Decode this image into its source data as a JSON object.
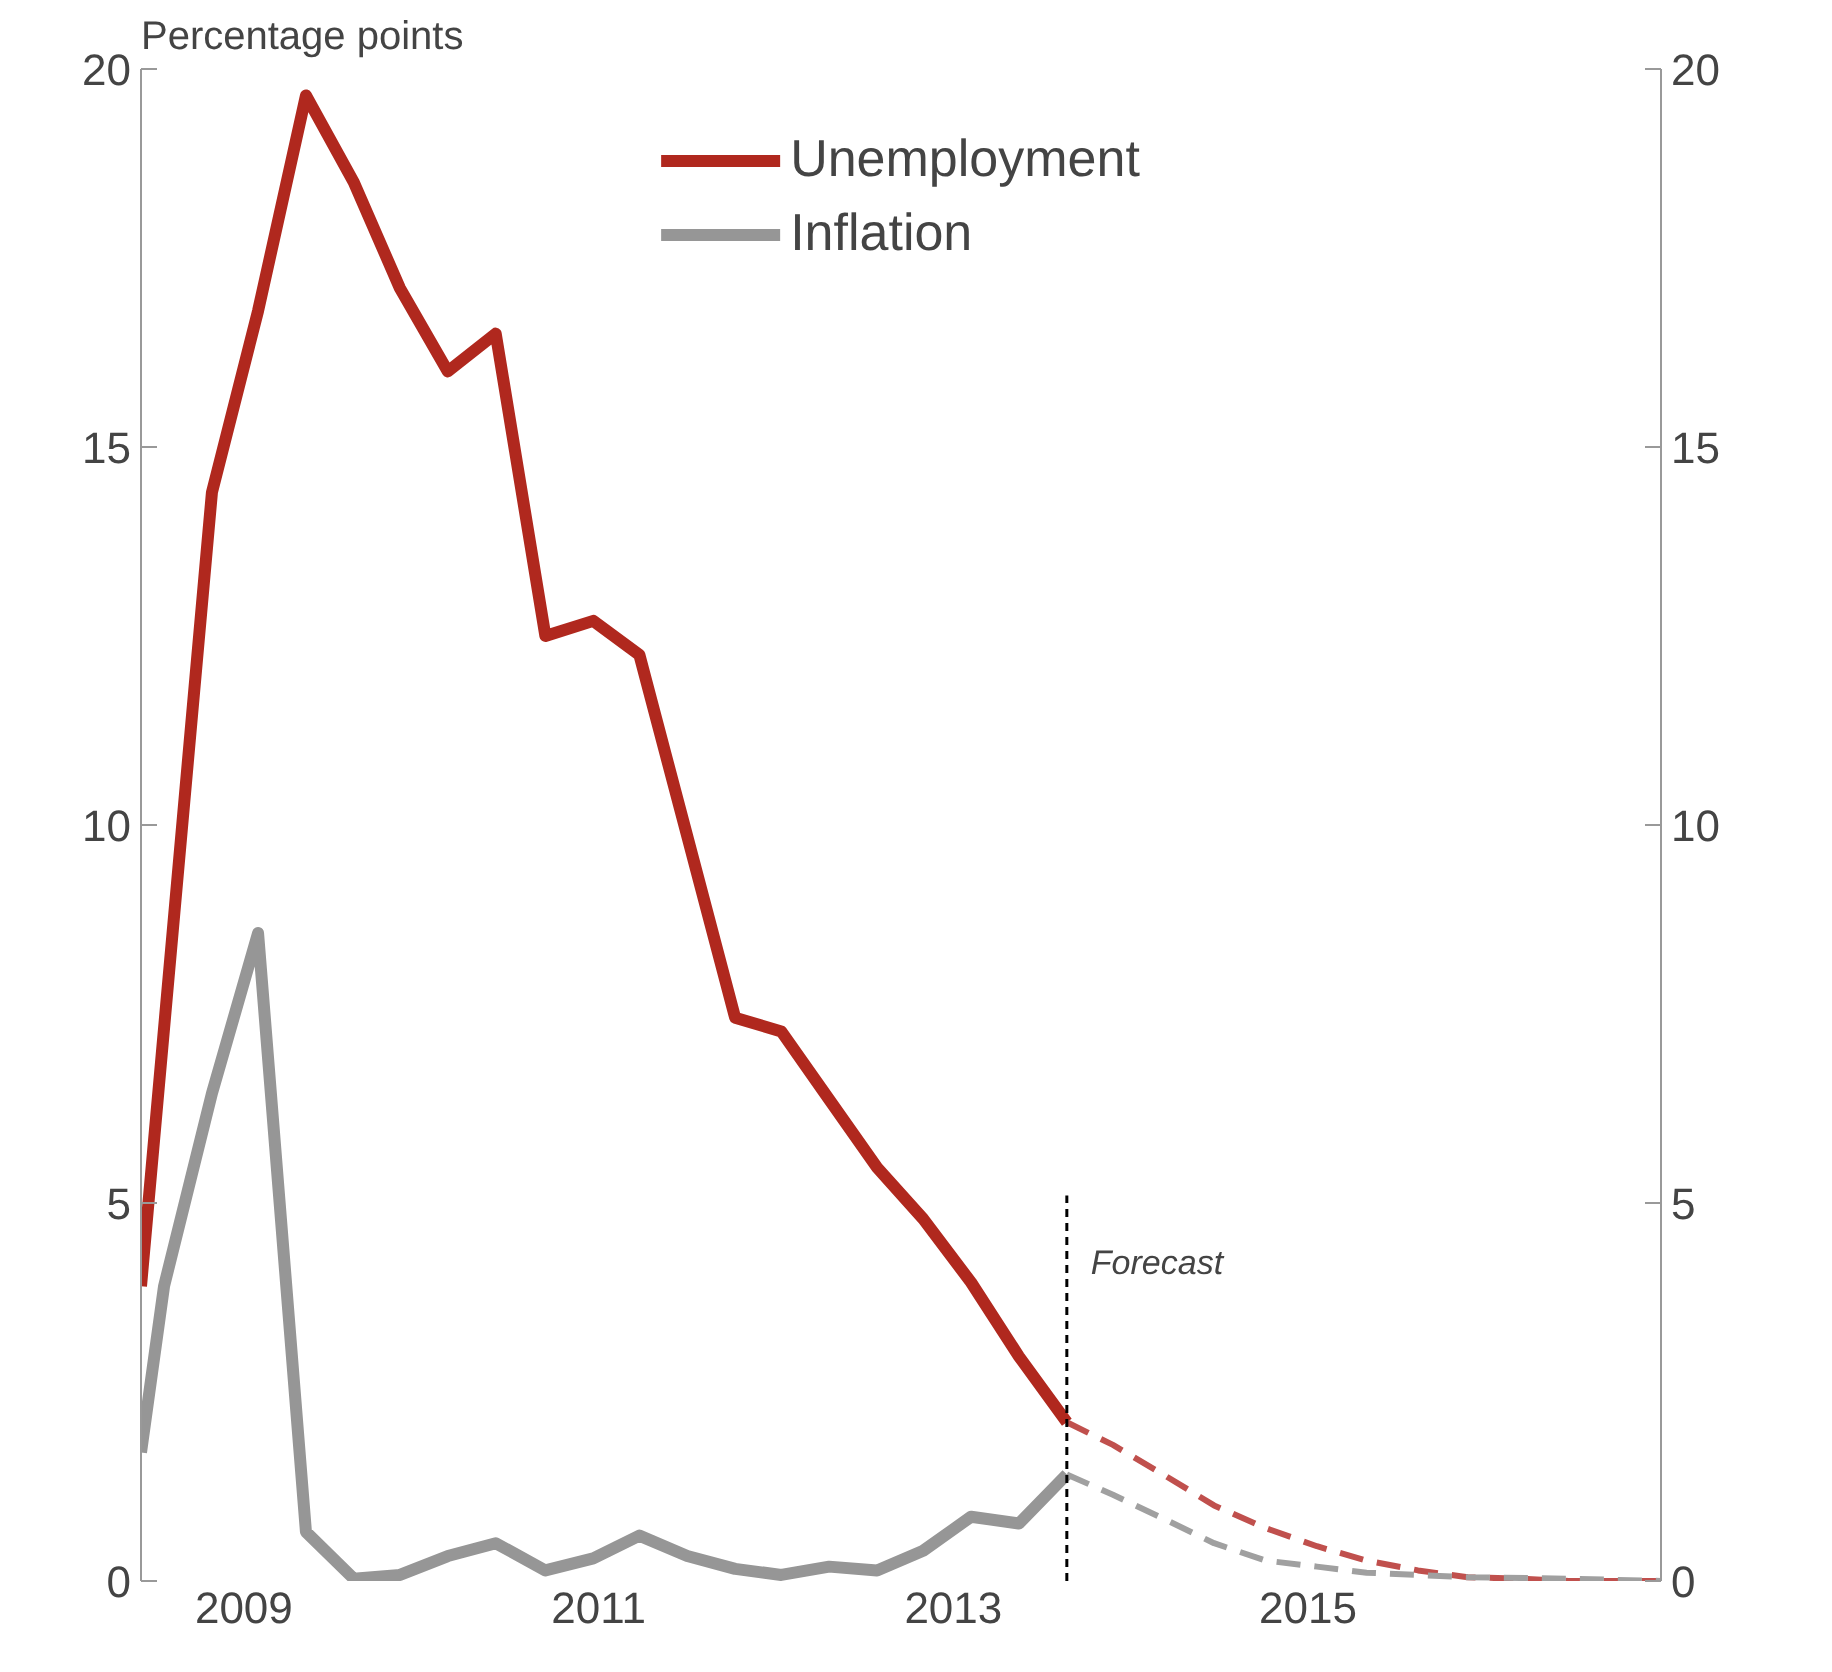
{
  "chart_data": {
    "type": "line",
    "ylabel": "Percentage points",
    "xlim": [
      2008.42,
      2016.99
    ],
    "xticks": [
      2009,
      2011,
      2013,
      2015
    ],
    "ylim": [
      0,
      20
    ],
    "yticks": [
      0,
      5,
      10,
      15,
      20
    ],
    "y2lim": [
      0,
      20
    ],
    "y2ticks": [
      0,
      5,
      10,
      15,
      20
    ],
    "grid": false,
    "legend": "top",
    "marker": "none",
    "series": [
      {
        "name": "Unemployment",
        "color": "#b0281e",
        "line_style": "solid",
        "x": [
          2008.42,
          2008.82,
          2009.08,
          2009.35,
          2009.62,
          2009.88,
          2010.15,
          2010.42,
          2010.7,
          2010.97,
          2011.23,
          2011.5,
          2011.77,
          2012.03,
          2012.3,
          2012.57,
          2012.83,
          2013.1,
          2013.37,
          2013.64
        ],
        "values": [
          3.9,
          14.4,
          16.8,
          19.65,
          18.5,
          17.1,
          16.0,
          16.5,
          12.5,
          12.7,
          12.25,
          9.85,
          7.45,
          7.27,
          6.37,
          5.47,
          4.79,
          3.95,
          2.97,
          2.1
        ]
      },
      {
        "name": "Inflation",
        "color": "#969696",
        "line_style": "solid",
        "x": [
          2008.42,
          2008.55,
          2008.82,
          2009.08,
          2009.35,
          2009.62,
          2009.88,
          2010.15,
          2010.42,
          2010.7,
          2010.97,
          2011.23,
          2011.5,
          2011.77,
          2012.03,
          2012.3,
          2012.57,
          2012.83,
          2013.1,
          2013.37,
          2013.64
        ],
        "values": [
          1.7,
          3.9,
          6.45,
          8.57,
          0.65,
          0.03,
          0.08,
          0.33,
          0.5,
          0.14,
          0.3,
          0.6,
          0.33,
          0.16,
          0.08,
          0.19,
          0.14,
          0.4,
          0.85,
          0.76,
          1.41
        ]
      },
      {
        "color": "#c0504d",
        "line_style": "dashed",
        "x": [
          2013.64,
          2013.9,
          2014.19,
          2014.47,
          2014.76,
          2015.05,
          2015.33,
          2015.62,
          2015.9,
          2016.19,
          2016.47,
          2016.99
        ],
        "values": [
          2.1,
          1.8,
          1.4,
          1.0,
          0.7,
          0.46,
          0.27,
          0.14,
          0.05,
          0.03,
          0.0,
          0.0
        ]
      },
      {
        "color": "#a0a0a0",
        "line_style": "dashed",
        "x": [
          2013.64,
          2013.9,
          2014.19,
          2014.47,
          2014.76,
          2015.05,
          2015.33,
          2015.9,
          2016.47,
          2016.99
        ],
        "values": [
          1.41,
          1.14,
          0.82,
          0.5,
          0.27,
          0.19,
          0.11,
          0.05,
          0.03,
          0.0
        ]
      }
    ],
    "ref_lines": [
      {
        "axis": "x",
        "value": 2013.64,
        "label": "Forecast",
        "color": "#000000",
        "line_style": "dashed"
      }
    ]
  }
}
